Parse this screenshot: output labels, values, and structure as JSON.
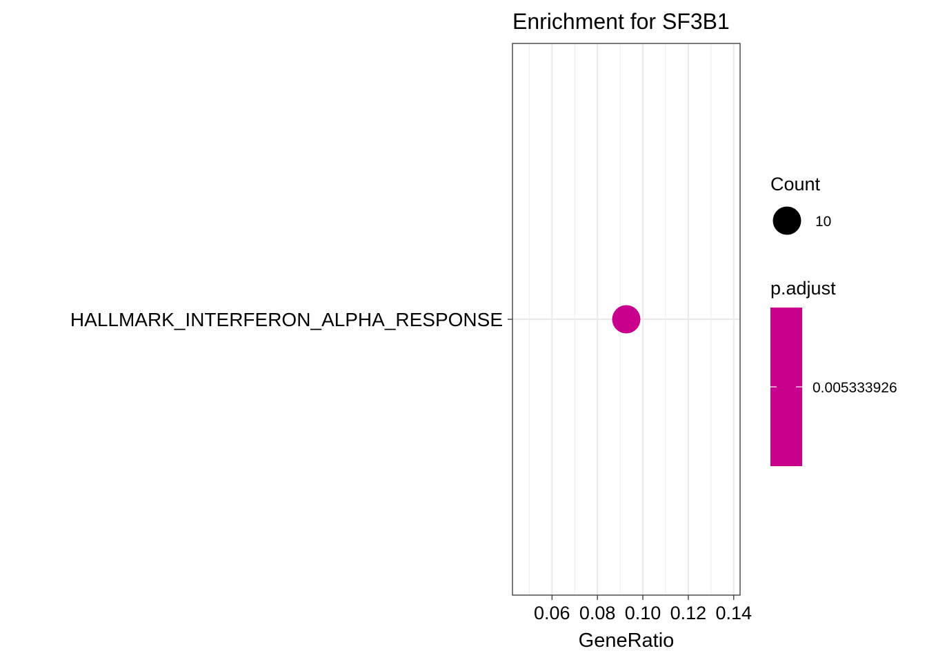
{
  "chart_data": {
    "type": "scatter",
    "title": "Enrichment for SF3B1",
    "xlabel": "GeneRatio",
    "ylabel": "",
    "x_ticks": [
      0.06,
      0.08,
      0.1,
      0.12,
      0.14
    ],
    "x_tick_labels": [
      "0.06",
      "0.08",
      "0.10",
      "0.12",
      "0.14"
    ],
    "xlim": [
      0.0426,
      0.1428
    ],
    "grid": true,
    "categories": [
      "HALLMARK_INTERFERON_ALPHA_RESPONSE"
    ],
    "points": [
      {
        "category": "HALLMARK_INTERFERON_ALPHA_RESPONSE",
        "x": 0.0927,
        "count": 10,
        "p_adjust": 0.005333926
      }
    ],
    "point_color": "#C8008C",
    "legend_placement": "right",
    "legends": {
      "size": {
        "title": "Count",
        "items": [
          {
            "label": "10",
            "value": 10
          }
        ]
      },
      "color": {
        "title": "p.adjust",
        "items": [
          {
            "label": "0.005333926",
            "value": 0.005333926
          }
        ],
        "color": "#C8008C"
      }
    }
  }
}
